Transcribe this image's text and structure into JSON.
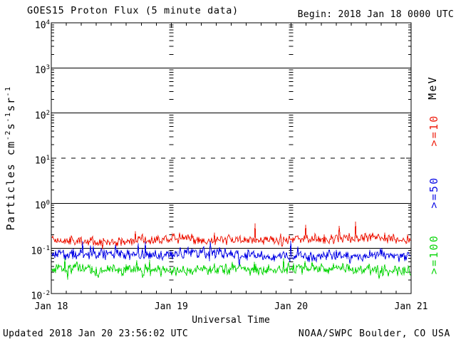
{
  "page": {
    "footer_left": "Updated 2018 Jan 20 23:56:02 UTC",
    "footer_right": "NOAA/SWPC Boulder, CO USA"
  },
  "chart_data": {
    "type": "line",
    "title": "GOES15 Proton Flux (5 minute data)",
    "begin": "Begin: 2018 Jan 18 0000 UTC",
    "xlabel": "Universal Time",
    "ylabel": "Particles cm-2s-1sr-1",
    "ylabel_parts": [
      "Particles cm",
      "^-2",
      "s",
      "^-1",
      "sr",
      "^-1"
    ],
    "right_axis_unit": "MeV",
    "x_tick_labels": [
      "Jan 18",
      "Jan 19",
      "Jan 20",
      "Jan 21"
    ],
    "x_days": 3,
    "x_minor_ticks_per_day": 8,
    "y_scale": "log10",
    "y_log_max": 4,
    "y_log_min": -2,
    "y_tick_labels": [
      "10^4",
      "10^3",
      "10^2",
      "10^1",
      "10^0",
      "10^-1",
      "10^-2"
    ],
    "solid_hlines_log10": [
      3,
      2,
      0,
      -1
    ],
    "dashed_hlines_log10": [
      1
    ],
    "grid": true,
    "legend_position": "right-rotated",
    "cadence_minutes": 5,
    "series": [
      {
        "name": "protons_ge_10MeV",
        "label": ">=10",
        "color": "#ee1c0c",
        "approx_mean_flux": 0.16,
        "approx_range": [
          0.09,
          0.42
        ],
        "mean_log10": -0.8,
        "sigma_log10": 0.14,
        "wander_step": 0.02,
        "wander_max": 0.05,
        "spike_up_prob": 0.03,
        "spike_up_log10": 0.4,
        "spike_down_prob": 0.02,
        "spike_down_log10": 0.15,
        "min_log10": -1.05,
        "max_log10": -0.38,
        "seed": 101
      },
      {
        "name": "protons_ge_50MeV",
        "label": ">=50",
        "color": "#0a0ae6",
        "approx_mean_flux": 0.074,
        "approx_range": [
          0.038,
          0.15
        ],
        "mean_log10": -1.13,
        "sigma_log10": 0.15,
        "wander_step": 0.02,
        "wander_max": 0.05,
        "spike_up_prob": 0.04,
        "spike_up_log10": 0.28,
        "spike_down_prob": 0.03,
        "spike_down_log10": 0.18,
        "min_log10": -1.42,
        "max_log10": -0.83,
        "seed": 202
      },
      {
        "name": "protons_ge_100MeV",
        "label": ">=100",
        "color": "#0cd60c",
        "approx_mean_flux": 0.033,
        "approx_range": [
          0.018,
          0.06
        ],
        "mean_log10": -1.48,
        "sigma_log10": 0.15,
        "wander_step": 0.02,
        "wander_max": 0.05,
        "spike_up_prob": 0.03,
        "spike_up_log10": 0.25,
        "spike_down_prob": 0.05,
        "spike_down_log10": 0.22,
        "min_log10": -1.74,
        "max_log10": -1.22,
        "seed": 303
      }
    ]
  }
}
